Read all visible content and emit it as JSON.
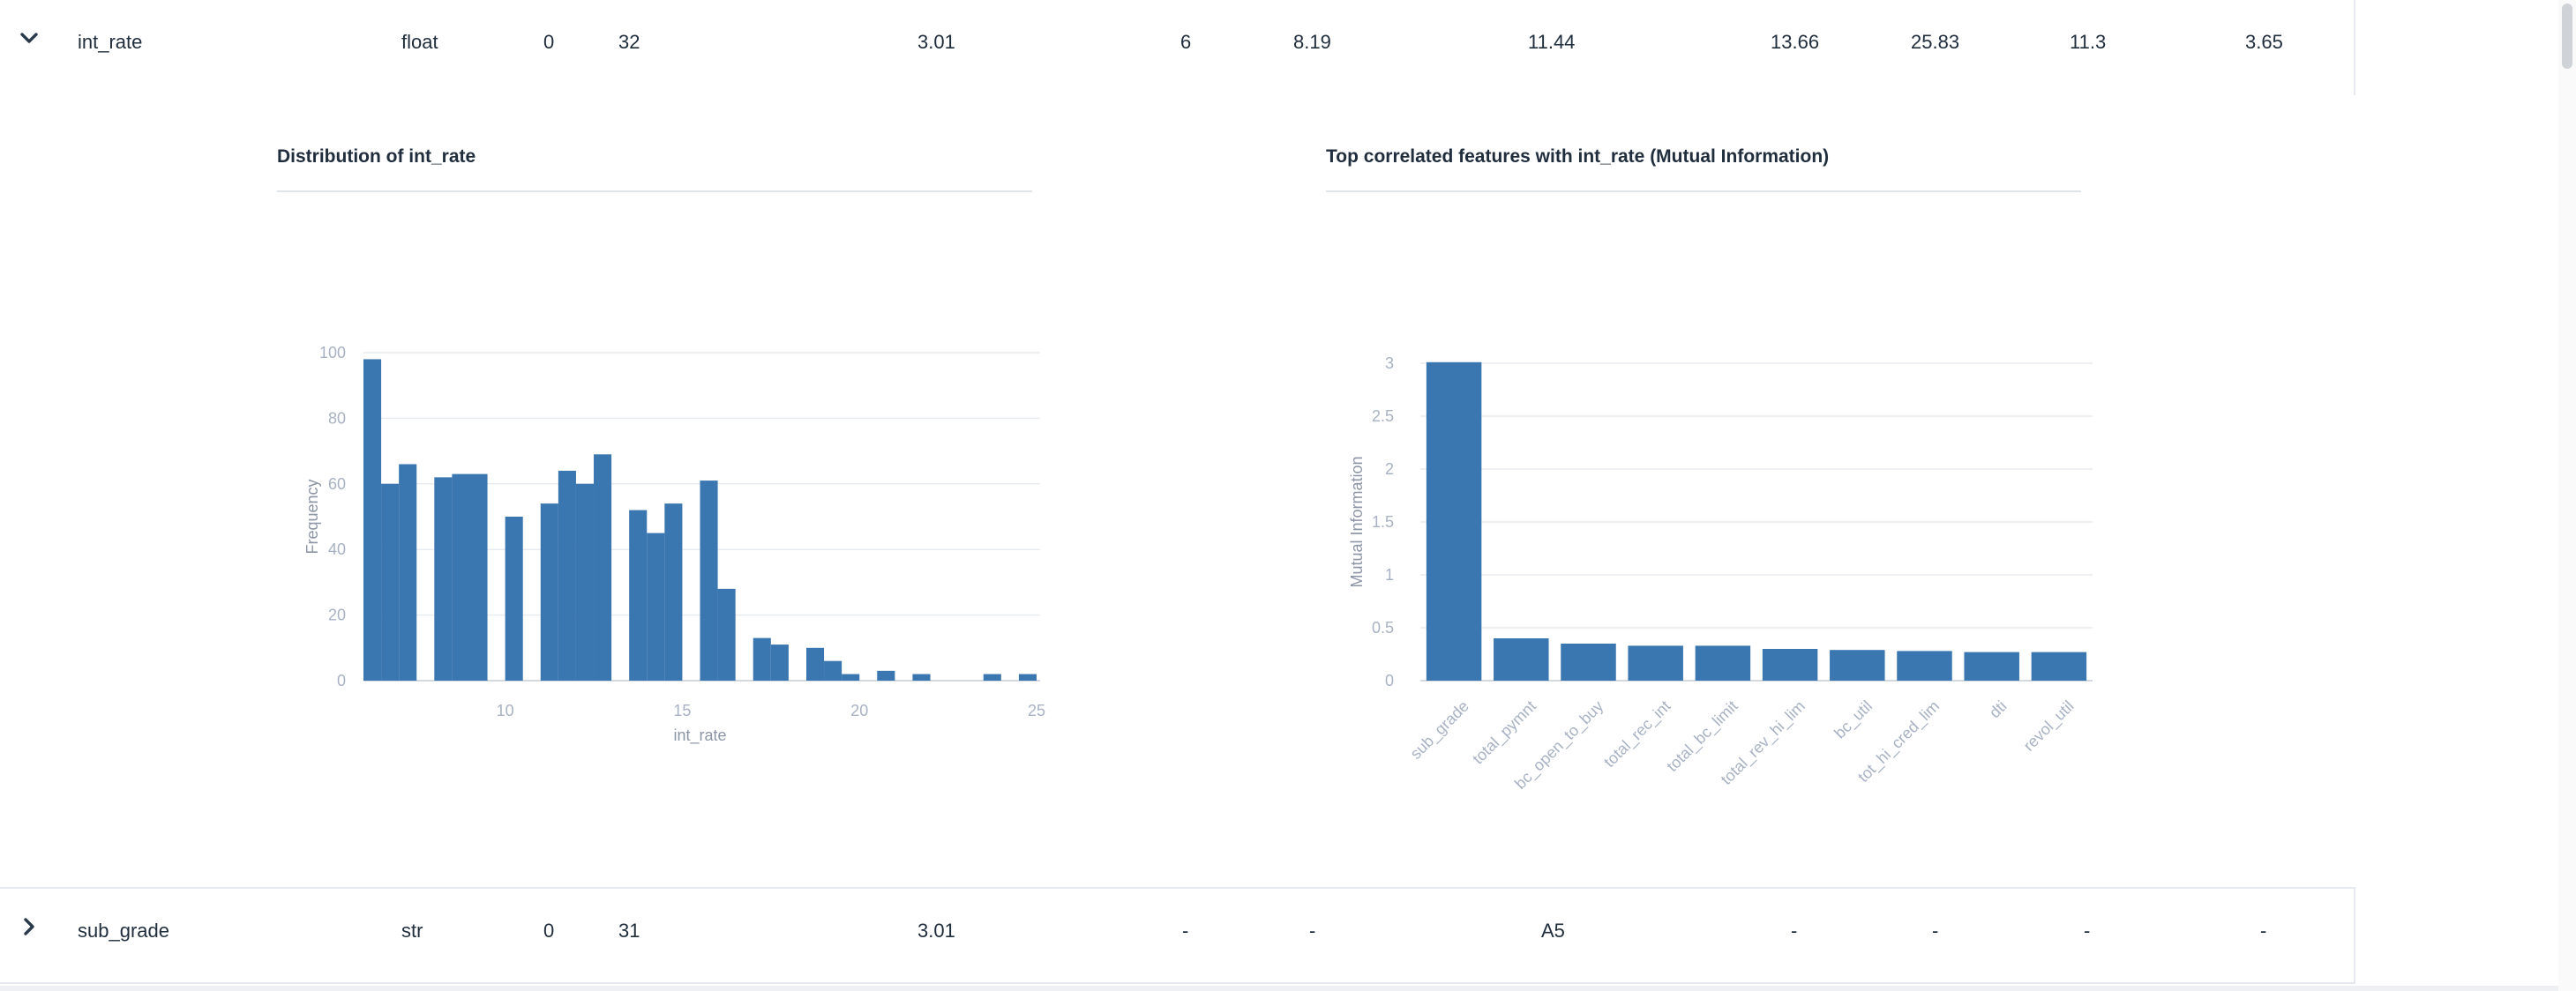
{
  "rows": [
    {
      "expanded": true,
      "cells": [
        "int_rate",
        "float",
        "0",
        "32",
        "3.01",
        "6",
        "8.19",
        "11.44",
        "13.66",
        "25.83",
        "11.3",
        "3.65"
      ]
    },
    {
      "expanded": false,
      "cells": [
        "sub_grade",
        "str",
        "0",
        "31",
        "3.01",
        "-",
        "-",
        "A5",
        "-",
        "-",
        "-",
        "-"
      ]
    }
  ],
  "chart_data": [
    {
      "type": "bar",
      "title": "Distribution of int_rate",
      "xlabel": "int_rate",
      "ylabel": "Frequency",
      "xlim": [
        6,
        25
      ],
      "ylim": [
        0,
        100
      ],
      "xticks": [
        10,
        15,
        20,
        25
      ],
      "yticks": [
        0,
        20,
        40,
        60,
        80,
        100
      ],
      "grid": true,
      "color": "#3a76b0",
      "bins": [
        {
          "x0": 6.0,
          "x1": 6.5,
          "value": 98
        },
        {
          "x0": 6.5,
          "x1": 7.0,
          "value": 60
        },
        {
          "x0": 7.0,
          "x1": 7.5,
          "value": 66
        },
        {
          "x0": 8.0,
          "x1": 8.5,
          "value": 62
        },
        {
          "x0": 8.5,
          "x1": 9.5,
          "value": 63
        },
        {
          "x0": 10.0,
          "x1": 10.5,
          "value": 50
        },
        {
          "x0": 11.0,
          "x1": 11.5,
          "value": 54
        },
        {
          "x0": 11.5,
          "x1": 12.0,
          "value": 64
        },
        {
          "x0": 12.0,
          "x1": 12.5,
          "value": 60
        },
        {
          "x0": 12.5,
          "x1": 13.0,
          "value": 69
        },
        {
          "x0": 13.5,
          "x1": 14.0,
          "value": 52
        },
        {
          "x0": 14.0,
          "x1": 14.5,
          "value": 45
        },
        {
          "x0": 14.5,
          "x1": 15.0,
          "value": 54
        },
        {
          "x0": 15.5,
          "x1": 16.0,
          "value": 61
        },
        {
          "x0": 16.0,
          "x1": 16.5,
          "value": 28
        },
        {
          "x0": 17.0,
          "x1": 17.5,
          "value": 13
        },
        {
          "x0": 17.5,
          "x1": 18.0,
          "value": 11
        },
        {
          "x0": 18.5,
          "x1": 19.0,
          "value": 10
        },
        {
          "x0": 19.0,
          "x1": 19.5,
          "value": 6
        },
        {
          "x0": 19.5,
          "x1": 20.0,
          "value": 2
        },
        {
          "x0": 20.5,
          "x1": 21.0,
          "value": 3
        },
        {
          "x0": 21.5,
          "x1": 22.0,
          "value": 2
        },
        {
          "x0": 23.5,
          "x1": 24.0,
          "value": 2
        },
        {
          "x0": 24.5,
          "x1": 25.0,
          "value": 2
        }
      ]
    },
    {
      "type": "bar",
      "title": "Top correlated features with int_rate (Mutual Information)",
      "xlabel": "",
      "ylabel": "Mutual Information",
      "ylim": [
        0,
        3
      ],
      "yticks": [
        0,
        0.5,
        1,
        1.5,
        2,
        2.5,
        3
      ],
      "grid": true,
      "color": "#3a76b0",
      "categories": [
        "sub_grade",
        "total_pymnt",
        "bc_open_to_buy",
        "total_rec_int",
        "total_bc_limit",
        "total_rev_hi_lim",
        "bc_util",
        "tot_hi_cred_lim",
        "dti",
        "revol_util"
      ],
      "values": [
        3.01,
        0.4,
        0.35,
        0.33,
        0.33,
        0.3,
        0.29,
        0.28,
        0.27,
        0.27
      ]
    }
  ]
}
